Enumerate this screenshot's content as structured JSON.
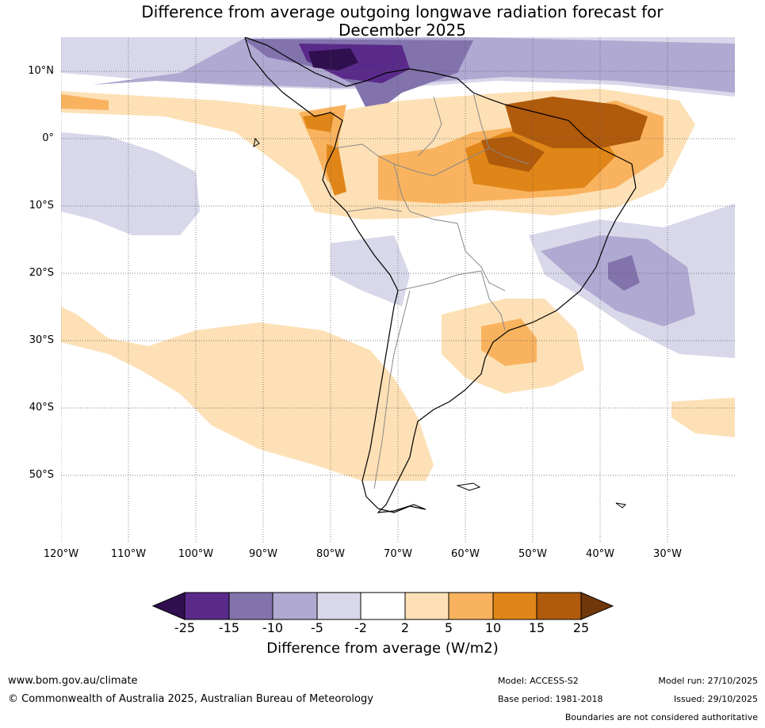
{
  "title_line1": "Difference from average outgoing longwave radiation forecast for",
  "title_line2": "December 2025",
  "latitude_labels": [
    "10°N",
    "0°",
    "10°S",
    "20°S",
    "30°S",
    "40°S",
    "50°S"
  ],
  "longitude_labels": [
    "120°W",
    "110°W",
    "100°W",
    "90°W",
    "80°W",
    "70°W",
    "60°W",
    "50°W",
    "40°W",
    "30°W"
  ],
  "colorbar": {
    "ticks": [
      "-25",
      "-15",
      "-10",
      "-5",
      "-2",
      "2",
      "5",
      "10",
      "15",
      "25"
    ],
    "colors": [
      "#2f0f4e",
      "#5a2a8a",
      "#8273ad",
      "#b0a9d1",
      "#d8d8ea",
      "#ffffff",
      "#fde0b5",
      "#f9b35f",
      "#e08618",
      "#b05a0c",
      "#70380a"
    ],
    "title": "Difference from average (W/m2)"
  },
  "footer": {
    "website": "www.bom.gov.au/climate",
    "copyright": "© Commonwealth of Australia 2025, Australian Bureau of Meteorology",
    "model": "Model: ACCESS-S2",
    "base_period": "Base period: 1981-2018",
    "model_run": "Model run: 27/10/2025",
    "issued": "Issued: 29/10/2025",
    "boundaries_note": "Boundaries are not considered authoritative"
  }
}
